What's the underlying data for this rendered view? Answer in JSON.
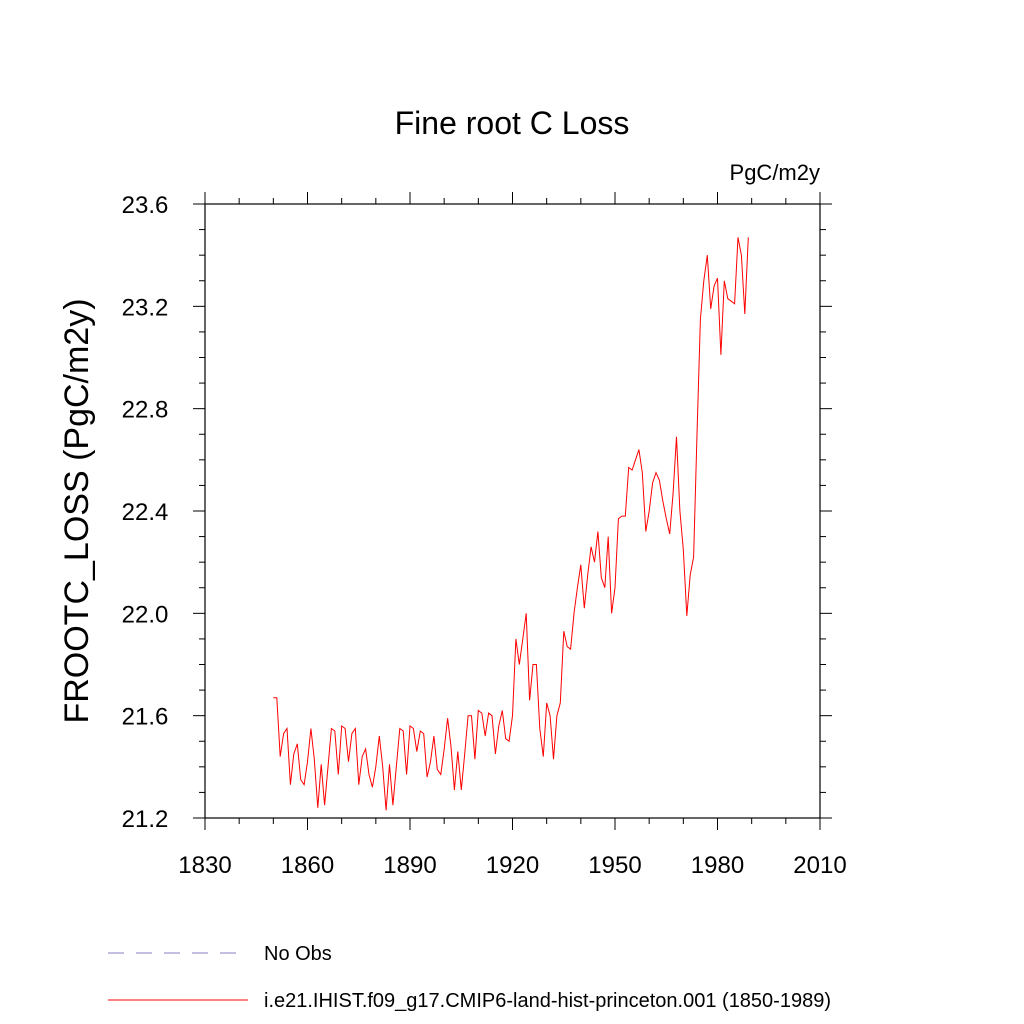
{
  "chart_data": {
    "type": "line",
    "title": "Fine root C Loss",
    "units_label": "PgC/m2y",
    "ylabel": "FROOTC_LOSS  (PgC/m2y)",
    "xlabel": "",
    "xlim": [
      1830,
      2010
    ],
    "ylim": [
      21.2,
      23.6
    ],
    "xticks": [
      1830,
      1860,
      1890,
      1920,
      1950,
      1980,
      2010
    ],
    "xtick_labels": [
      "1830",
      "1860",
      "1890",
      "1920",
      "1950",
      "1980",
      "2010"
    ],
    "yticks": [
      21.2,
      21.6,
      22.0,
      22.4,
      22.8,
      23.2,
      23.6
    ],
    "ytick_labels": [
      "21.2",
      "21.6",
      "22.0",
      "22.4",
      "22.8",
      "23.2",
      "23.6"
    ],
    "series": [
      {
        "name": "i.e21.IHIST.f09_g17.CMIP6-land-hist-princeton.001 (1850-1989)",
        "color": "#ff0000",
        "style": "solid",
        "x": [
          1850,
          1851,
          1852,
          1853,
          1854,
          1855,
          1856,
          1857,
          1858,
          1859,
          1860,
          1861,
          1862,
          1863,
          1864,
          1865,
          1866,
          1867,
          1868,
          1869,
          1870,
          1871,
          1872,
          1873,
          1874,
          1875,
          1876,
          1877,
          1878,
          1879,
          1880,
          1881,
          1882,
          1883,
          1884,
          1885,
          1886,
          1887,
          1888,
          1889,
          1890,
          1891,
          1892,
          1893,
          1894,
          1895,
          1896,
          1897,
          1898,
          1899,
          1900,
          1901,
          1902,
          1903,
          1904,
          1905,
          1906,
          1907,
          1908,
          1909,
          1910,
          1911,
          1912,
          1913,
          1914,
          1915,
          1916,
          1917,
          1918,
          1919,
          1920,
          1921,
          1922,
          1923,
          1924,
          1925,
          1926,
          1927,
          1928,
          1929,
          1930,
          1931,
          1932,
          1933,
          1934,
          1935,
          1936,
          1937,
          1938,
          1939,
          1940,
          1941,
          1942,
          1943,
          1944,
          1945,
          1946,
          1947,
          1948,
          1949,
          1950,
          1951,
          1952,
          1953,
          1954,
          1955,
          1956,
          1957,
          1958,
          1959,
          1960,
          1961,
          1962,
          1963,
          1964,
          1965,
          1966,
          1967,
          1968,
          1969,
          1970,
          1971,
          1972,
          1973,
          1974,
          1975,
          1976,
          1977,
          1978,
          1979,
          1980,
          1981,
          1982,
          1983,
          1984,
          1985,
          1986,
          1987,
          1988,
          1989
        ],
        "values": [
          21.67,
          21.67,
          21.44,
          21.53,
          21.55,
          21.33,
          21.45,
          21.49,
          21.35,
          21.33,
          21.42,
          21.55,
          21.43,
          21.24,
          21.41,
          21.25,
          21.4,
          21.55,
          21.54,
          21.37,
          21.56,
          21.55,
          21.42,
          21.53,
          21.55,
          21.33,
          21.44,
          21.47,
          21.37,
          21.32,
          21.4,
          21.52,
          21.4,
          21.23,
          21.41,
          21.25,
          21.4,
          21.55,
          21.54,
          21.37,
          21.56,
          21.55,
          21.46,
          21.54,
          21.53,
          21.36,
          21.42,
          21.52,
          21.39,
          21.37,
          21.47,
          21.59,
          21.48,
          21.31,
          21.46,
          21.31,
          21.45,
          21.6,
          21.6,
          21.43,
          21.62,
          21.61,
          21.52,
          21.61,
          21.6,
          21.45,
          21.56,
          21.62,
          21.51,
          21.5,
          21.6,
          21.9,
          21.8,
          21.9,
          22.0,
          21.66,
          21.8,
          21.8,
          21.55,
          21.44,
          21.65,
          21.6,
          21.43,
          21.6,
          21.65,
          21.93,
          21.87,
          21.86,
          22.0,
          22.1,
          22.19,
          22.02,
          22.15,
          22.26,
          22.2,
          22.32,
          22.14,
          22.1,
          22.3,
          22.0,
          22.1,
          22.37,
          22.38,
          22.38,
          22.57,
          22.56,
          22.6,
          22.64,
          22.55,
          22.32,
          22.4,
          22.51,
          22.55,
          22.52,
          22.44,
          22.37,
          22.31,
          22.47,
          22.69,
          22.4,
          22.25,
          21.99,
          22.15,
          22.22,
          22.7,
          23.15,
          23.3,
          23.4,
          23.19,
          23.28,
          23.31,
          23.01,
          23.3,
          23.23,
          23.22,
          23.21,
          23.47,
          23.4,
          23.17,
          23.47
        ]
      }
    ],
    "legend": {
      "placement": "bottom",
      "entries": [
        {
          "label": "No Obs",
          "color": "#8a7fc0",
          "style": "dashed"
        },
        {
          "label": "i.e21.IHIST.f09_g17.CMIP6-land-hist-princeton.001 (1850-1989)",
          "color": "#ff0000",
          "style": "solid"
        }
      ]
    }
  }
}
